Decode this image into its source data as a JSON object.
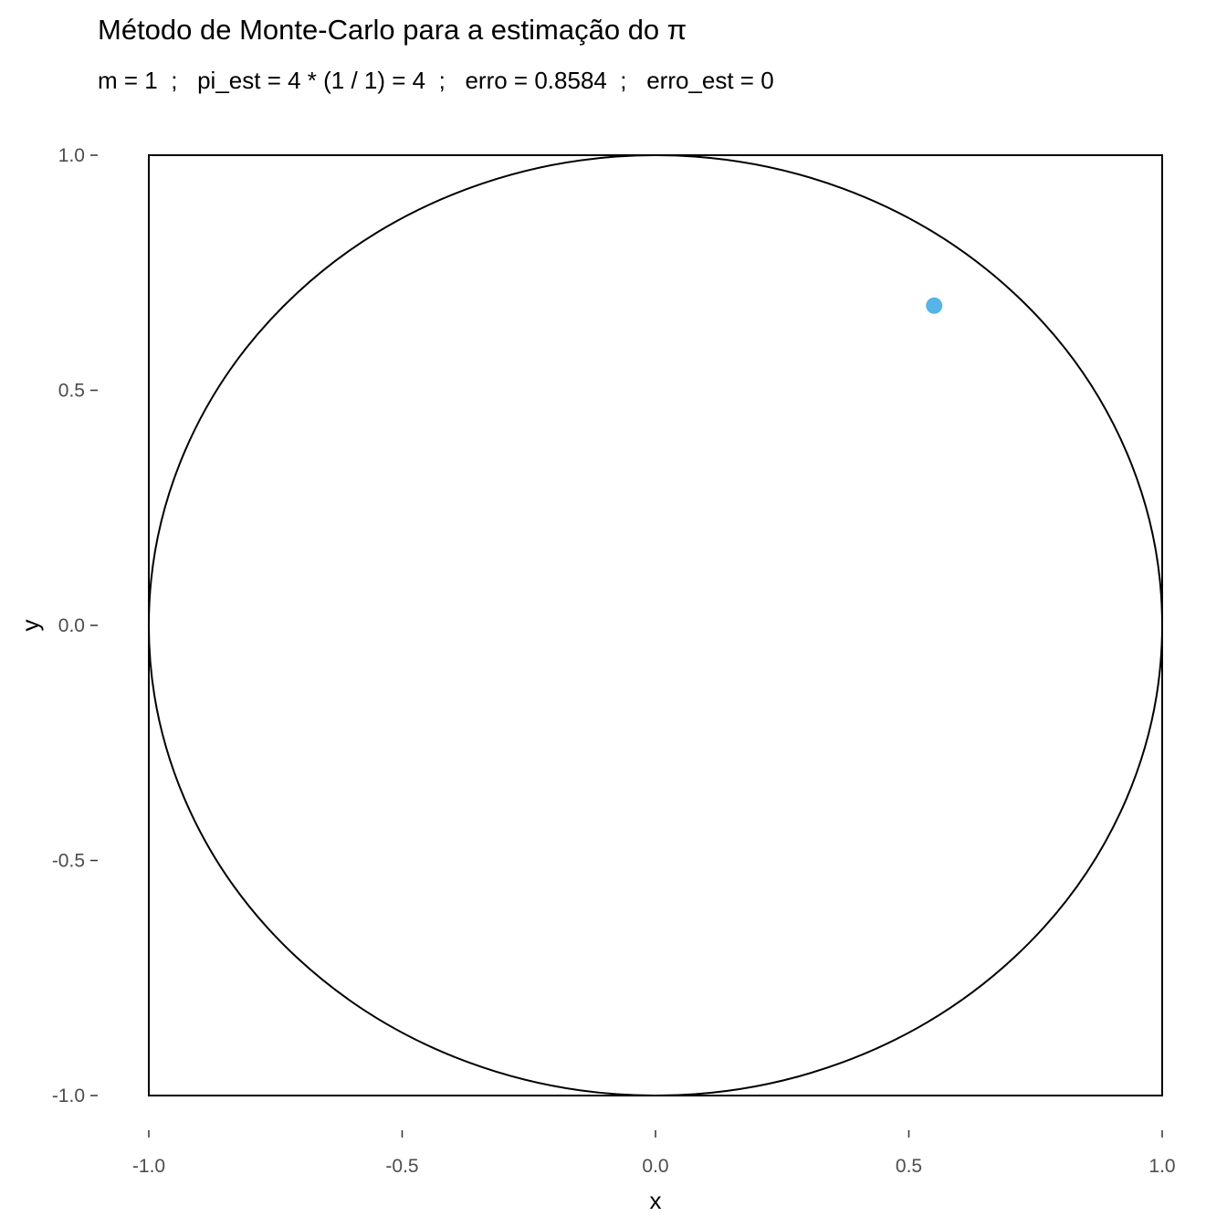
{
  "chart_data": {
    "type": "scatter",
    "title": "Método de Monte-Carlo para a estimação do π",
    "subtitle": "m = 1  ;   pi_est = 4 * (1 / 1) = 4  ;   erro = 0.8584  ;   erro_est = 0",
    "xlabel": "x",
    "ylabel": "y",
    "xlim": [
      -1.0,
      1.0
    ],
    "ylim": [
      -1.0,
      1.0
    ],
    "x_ticks": [
      -1.0,
      -0.5,
      0.0,
      0.5,
      1.0
    ],
    "x_tick_labels": [
      "-1.0",
      "-0.5",
      "0.0",
      "0.5",
      "1.0"
    ],
    "y_ticks": [
      -1.0,
      -0.5,
      0.0,
      0.5,
      1.0
    ],
    "y_tick_labels": [
      "-1.0",
      "-0.5",
      "0.0",
      "0.5",
      "1.0"
    ],
    "grid": false,
    "shapes": {
      "square": {
        "xmin": -1.0,
        "xmax": 1.0,
        "ymin": -1.0,
        "ymax": 1.0
      },
      "circle": {
        "cx": 0.0,
        "cy": 0.0,
        "r": 1.0
      }
    },
    "points": [
      {
        "x": 0.55,
        "y": 0.68
      }
    ],
    "colors": {
      "point": "#56b4e9",
      "outline": "#000000",
      "tick_label": "#4d4d4d"
    }
  }
}
